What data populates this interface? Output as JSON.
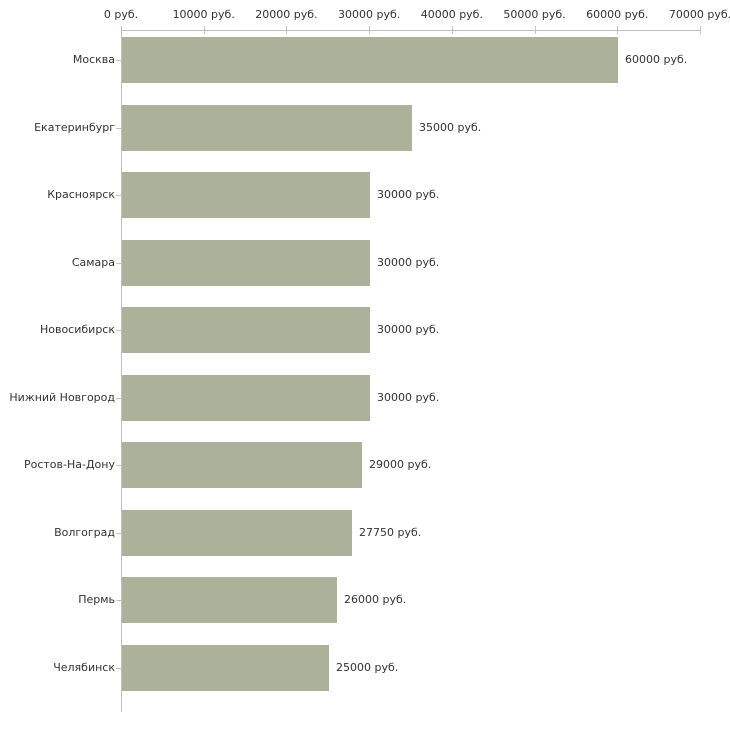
{
  "page": {
    "background_color": "#ffffff",
    "text_color": "#333333"
  },
  "chart_data": {
    "type": "bar",
    "orientation": "horizontal",
    "title": "",
    "categories": [
      "Москва",
      "Екатеринбург",
      "Красноярск",
      "Самара",
      "Новосибирск",
      "Нижний Новгород",
      "Ростов-На-Дону",
      "Волгоград",
      "Пермь",
      "Челябинск"
    ],
    "values": [
      60000,
      35000,
      30000,
      30000,
      30000,
      30000,
      29000,
      27750,
      26000,
      25000
    ],
    "value_labels": [
      "60000 руб.",
      "35000 руб.",
      "30000 руб.",
      "30000 руб.",
      "30000 руб.",
      "30000 руб.",
      "29000 руб.",
      "27750 руб.",
      "26000 руб.",
      "25000 руб."
    ],
    "x_axis": {
      "position": "top",
      "min": 0,
      "max": 70000,
      "tick_interval": 10000,
      "tick_values": [
        0,
        10000,
        20000,
        30000,
        40000,
        50000,
        60000,
        70000
      ],
      "tick_labels": [
        "0 руб.",
        "10000 руб.",
        "20000 руб.",
        "30000 руб.",
        "40000 руб.",
        "50000 руб.",
        "60000 руб.",
        "70000 руб."
      ]
    },
    "ylabel": "",
    "xlabel": "",
    "grid": false,
    "legend": null,
    "colors": {
      "bar_fill": "#acb29a",
      "axis_line": "#c0c0c0",
      "tick_mark": "#c9c99c",
      "label_text": "#333333",
      "background": "#ffffff"
    }
  }
}
